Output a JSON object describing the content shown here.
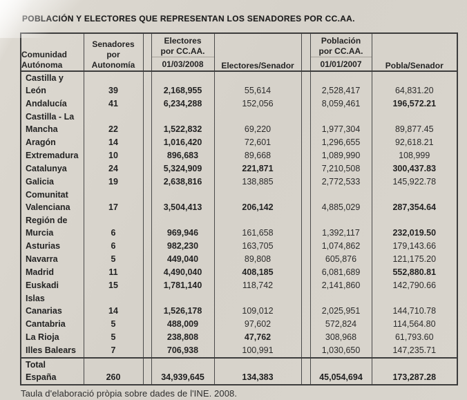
{
  "page": {
    "title": "POBLACIÓN Y ELECTORES QUE REPRESENTAN LOS SENADORES POR CC.AA.",
    "footnote": "Taula d'elaboració pròpia sobre dades de l'INE. 2008."
  },
  "table": {
    "header": {
      "comunidad": "Comunidad\nAutónoma",
      "senadores": "Senadores\npor\nAutonomía",
      "electores_label": "Electores\npor CC.AA.",
      "electores_date": "01/03/2008",
      "electores_senador": "Electores/Senador",
      "poblacion_label": "Población\npor CC.AA.",
      "poblacion_date": "01/01/2007",
      "pobla_senador": "Pobla/Senador"
    },
    "rows": [
      {
        "comunidad": "Castilla y\nLeón",
        "senadores": "39",
        "electores": "2,168,955",
        "electores_senador": "55,614",
        "poblacion": "2,528,417",
        "pobla_senador": "64,831.20",
        "bold": []
      },
      {
        "comunidad": "Andalucía",
        "senadores": "41",
        "electores": "6,234,288",
        "electores_senador": "152,056",
        "poblacion": "8,059,461",
        "pobla_senador": "196,572.21",
        "bold": [
          "pobla_senador"
        ]
      },
      {
        "comunidad": "Castilla - La\nMancha",
        "senadores": "22",
        "electores": "1,522,832",
        "electores_senador": "69,220",
        "poblacion": "1,977,304",
        "pobla_senador": "89,877.45",
        "bold": []
      },
      {
        "comunidad": "Aragón",
        "senadores": "14",
        "electores": "1,016,420",
        "electores_senador": "72,601",
        "poblacion": "1,296,655",
        "pobla_senador": "92,618.21",
        "bold": []
      },
      {
        "comunidad": "Extremadura",
        "senadores": "10",
        "electores": "896,683",
        "electores_senador": "89,668",
        "poblacion": "1,089,990",
        "pobla_senador": "108,999",
        "bold": []
      },
      {
        "comunidad": "Catalunya",
        "senadores": "24",
        "electores": "5,324,909",
        "electores_senador": "221,871",
        "poblacion": "7,210,508",
        "pobla_senador": "300,437.83",
        "bold": [
          "electores_senador",
          "pobla_senador"
        ]
      },
      {
        "comunidad": "Galicia",
        "senadores": "19",
        "electores": "2,638,816",
        "electores_senador": "138,885",
        "poblacion": "2,772,533",
        "pobla_senador": "145,922.78",
        "bold": []
      },
      {
        "comunidad": "Comunitat\nValenciana",
        "senadores": "17",
        "electores": "3,504,413",
        "electores_senador": "206,142",
        "poblacion": "4,885,029",
        "pobla_senador": "287,354.64",
        "bold": [
          "electores_senador",
          "pobla_senador"
        ]
      },
      {
        "comunidad": "Región de\nMurcia",
        "senadores": "6",
        "electores": "969,946",
        "electores_senador": "161,658",
        "poblacion": "1,392,117",
        "pobla_senador": "232,019.50",
        "bold": [
          "pobla_senador"
        ]
      },
      {
        "comunidad": "Asturias",
        "senadores": "6",
        "electores": "982,230",
        "electores_senador": "163,705",
        "poblacion": "1,074,862",
        "pobla_senador": "179,143.66",
        "bold": []
      },
      {
        "comunidad": "Navarra",
        "senadores": "5",
        "electores": "449,040",
        "electores_senador": "89,808",
        "poblacion": "605,876",
        "pobla_senador": "121,175.20",
        "bold": []
      },
      {
        "comunidad": "Madrid",
        "senadores": "11",
        "electores": "4,490,040",
        "electores_senador": "408,185",
        "poblacion": "6,081,689",
        "pobla_senador": "552,880.81",
        "bold": [
          "electores_senador",
          "pobla_senador"
        ]
      },
      {
        "comunidad": "Euskadi",
        "senadores": "15",
        "electores": "1,781,140",
        "electores_senador": "118,742",
        "poblacion": "2,141,860",
        "pobla_senador": "142,790.66",
        "bold": []
      },
      {
        "comunidad": "Islas\nCanarias",
        "senadores": "14",
        "electores": "1,526,178",
        "electores_senador": "109,012",
        "poblacion": "2,025,951",
        "pobla_senador": "144,710.78",
        "bold": []
      },
      {
        "comunidad": "Cantabria",
        "senadores": "5",
        "electores": "488,009",
        "electores_senador": "97,602",
        "poblacion": "572,824",
        "pobla_senador": "114,564.80",
        "bold": []
      },
      {
        "comunidad": "La Rioja",
        "senadores": "5",
        "electores": "238,808",
        "electores_senador": "47,762",
        "poblacion": "308,968",
        "pobla_senador": "61,793.60",
        "bold": [
          "electores_senador"
        ]
      },
      {
        "comunidad": "Illes Balears",
        "senadores": "7",
        "electores": "706,938",
        "electores_senador": "100,991",
        "poblacion": "1,030,650",
        "pobla_senador": "147,235.71",
        "bold": []
      }
    ],
    "total": {
      "comunidad": "Total\nEspaña",
      "senadores": "260",
      "electores": "34,939,645",
      "electores_senador": "134,383",
      "poblacion": "45,054,694",
      "pobla_senador": "173,287.28"
    }
  },
  "colors": {
    "paper": "#d6d2ca",
    "border": "#3c3c3c",
    "text": "#262626"
  }
}
